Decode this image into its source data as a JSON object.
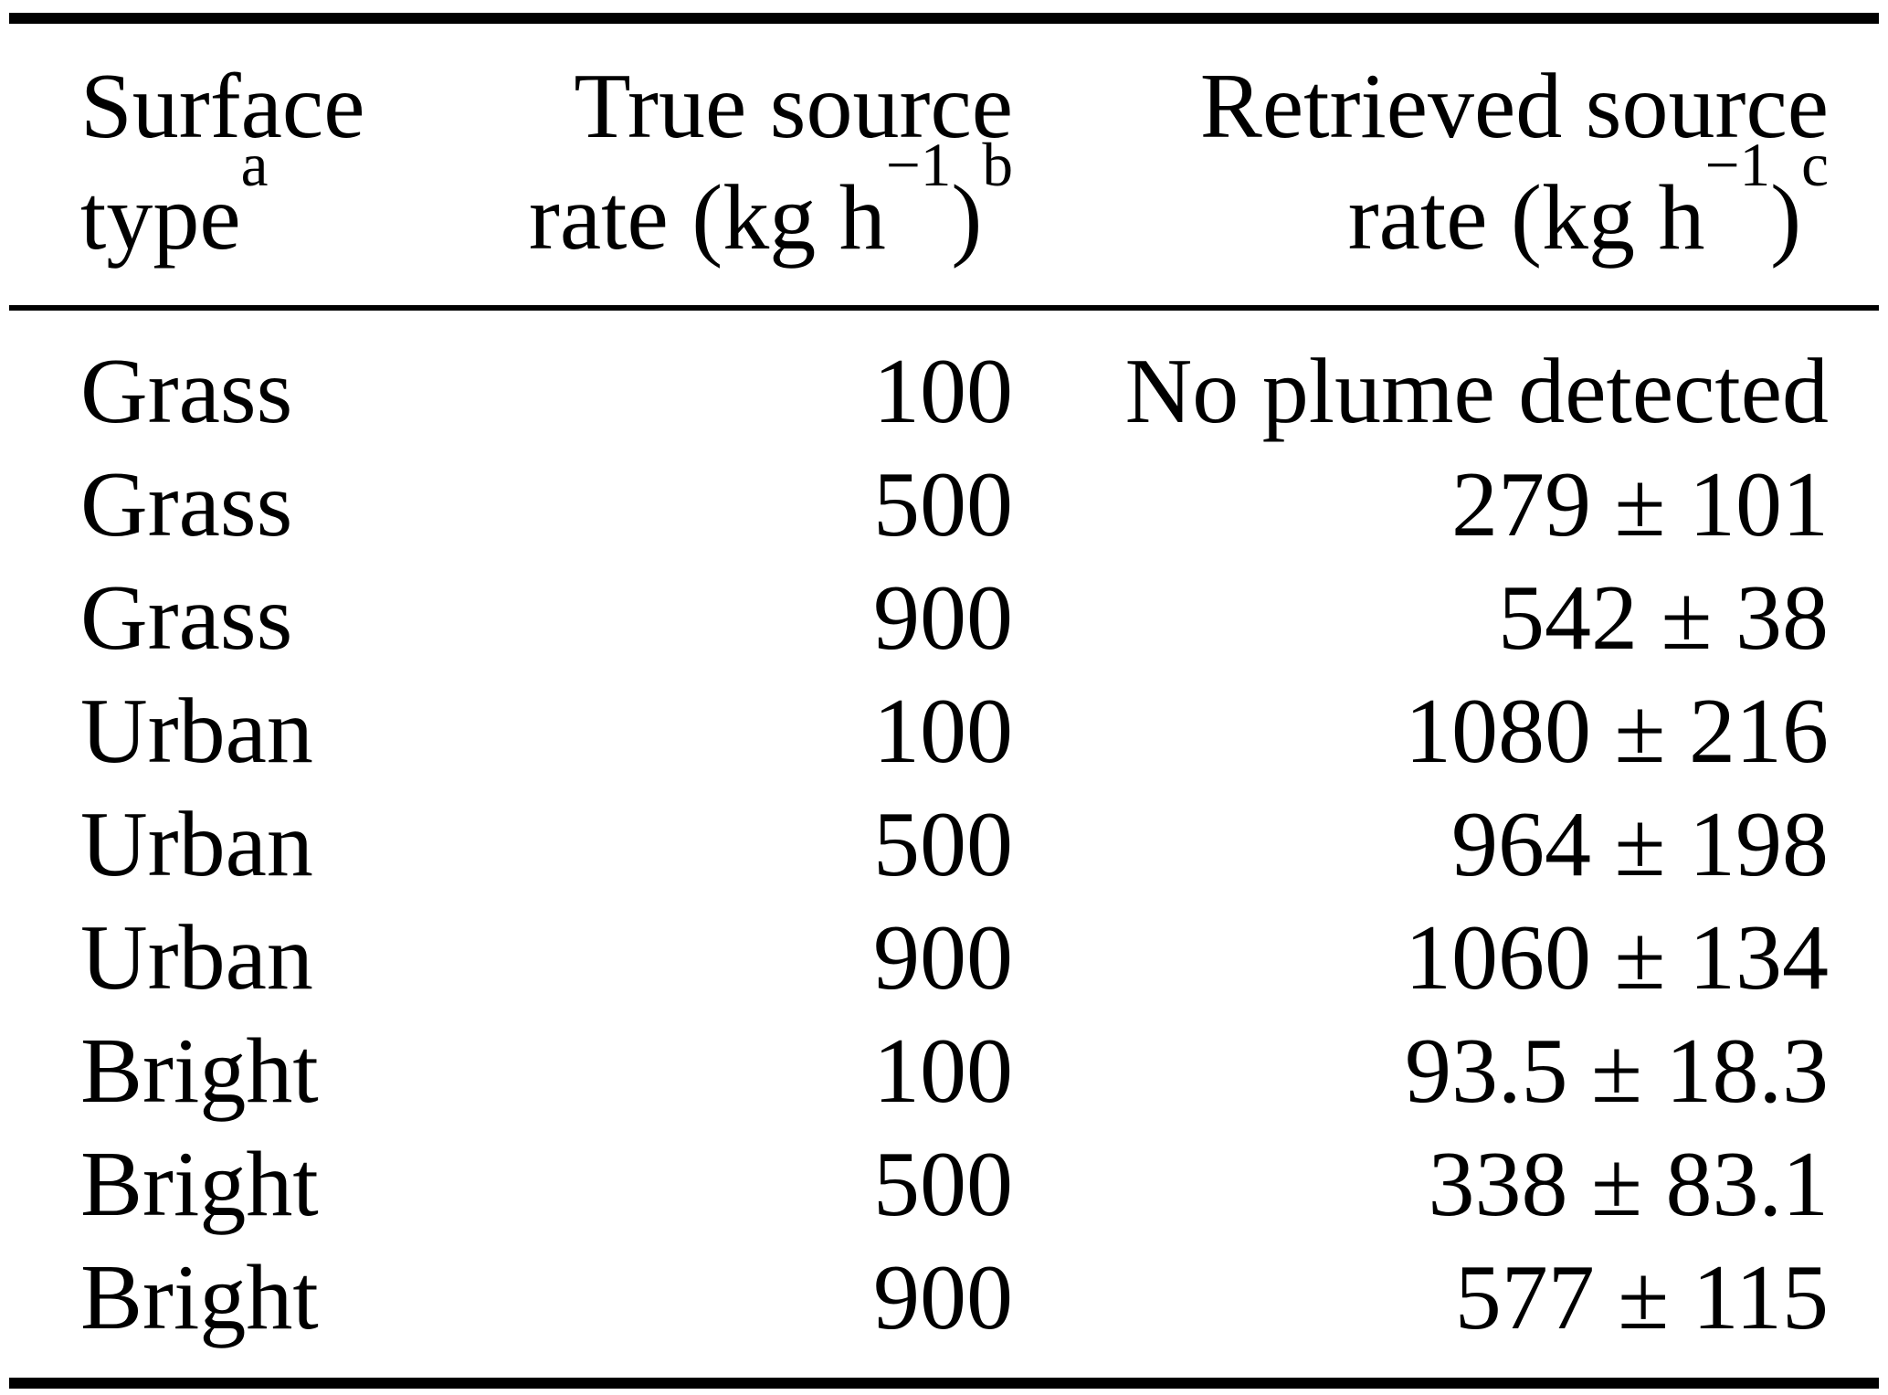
{
  "table": {
    "colors": {
      "text": "#000000",
      "background": "#ffffff",
      "rule": "#000000"
    },
    "header": {
      "col1": {
        "line1": "Surface",
        "line2": "type",
        "footnote": "a"
      },
      "col2": {
        "line1": "True source",
        "line2_prefix": "rate (kg h",
        "exponent": "−1",
        "line2_suffix": ")",
        "footnote": "b"
      },
      "col3": {
        "line1": "Retrieved source",
        "line2_prefix": "rate (kg h",
        "exponent": "−1",
        "line2_suffix": ")",
        "footnote": "c"
      }
    },
    "rows": [
      {
        "surface": "Grass",
        "true_rate": "100",
        "retrieved": "No plume detected"
      },
      {
        "surface": "Grass",
        "true_rate": "500",
        "retrieved": "279 ± 101"
      },
      {
        "surface": "Grass",
        "true_rate": "900",
        "retrieved": "542 ± 38"
      },
      {
        "surface": "Urban",
        "true_rate": "100",
        "retrieved": "1080 ± 216"
      },
      {
        "surface": "Urban",
        "true_rate": "500",
        "retrieved": "964 ± 198"
      },
      {
        "surface": "Urban",
        "true_rate": "900",
        "retrieved": "1060 ± 134"
      },
      {
        "surface": "Bright",
        "true_rate": "100",
        "retrieved": "93.5 ± 18.3"
      },
      {
        "surface": "Bright",
        "true_rate": "500",
        "retrieved": "338 ± 83.1"
      },
      {
        "surface": "Bright",
        "true_rate": "900",
        "retrieved": "577 ± 115"
      }
    ]
  }
}
